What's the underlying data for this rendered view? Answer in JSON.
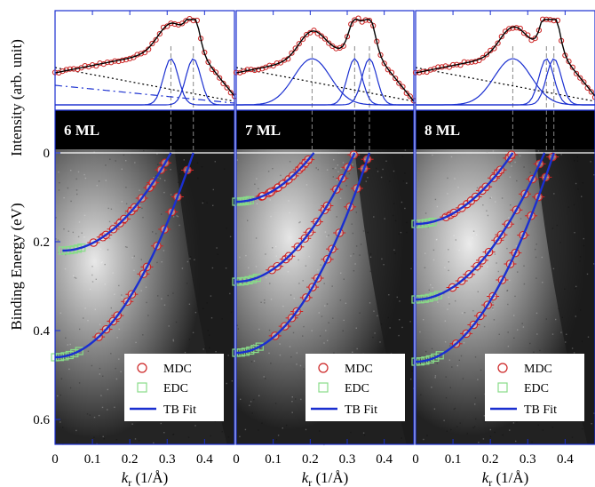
{
  "figure": {
    "y_label_top": "Intensity (arb. unit)",
    "y_label_bottom": "Binding Energy (eV)",
    "x_label_italic": "k",
    "x_label_sub": "r",
    "x_label_rest": " (1/Å)",
    "legend": {
      "mdc": "MDC",
      "edc": "EDC",
      "fit": "TB Fit"
    },
    "colors": {
      "mdc": "#cc2222",
      "edc": "#88dd88",
      "fit": "#1a2fd0",
      "axis": "#1a2fd0",
      "dash": "#888888"
    }
  },
  "chart_data": {
    "type": "scatter",
    "xlim": [
      0,
      0.48
    ],
    "ylim": [
      0.65,
      0
    ],
    "x_ticks": [
      0,
      0.1,
      0.2,
      0.3,
      0.4
    ],
    "y_ticks": [
      0,
      0.2,
      0.4,
      0.6
    ],
    "x_tick_labels": [
      "0",
      "0.1",
      "0.2",
      "0.3",
      "0.4"
    ],
    "y_tick_labels": [
      "0",
      "0.2",
      "0.4",
      "0.6"
    ],
    "panels": [
      {
        "label": "6 ML",
        "mdc_fermi_k": [
          0.31,
          0.37
        ],
        "bands": [
          {
            "kf": 0.31,
            "bottom_e": 0.22,
            "bottom_k": 0.02
          },
          {
            "kf": 0.37,
            "bottom_e": 0.46,
            "bottom_k": 0.0
          }
        ]
      },
      {
        "label": "7 ML",
        "mdc_fermi_k": [
          0.205,
          0.32,
          0.36
        ],
        "bands": [
          {
            "kf": 0.21,
            "bottom_e": 0.11,
            "bottom_k": 0.0
          },
          {
            "kf": 0.32,
            "bottom_e": 0.29,
            "bottom_k": 0.0
          },
          {
            "kf": 0.36,
            "bottom_e": 0.45,
            "bottom_k": 0.0
          }
        ]
      },
      {
        "label": "8 ML",
        "mdc_fermi_k": [
          0.26,
          0.35,
          0.37
        ],
        "bands": [
          {
            "kf": 0.26,
            "bottom_e": 0.16,
            "bottom_k": 0.0
          },
          {
            "kf": 0.345,
            "bottom_e": 0.33,
            "bottom_k": 0.0
          },
          {
            "kf": 0.37,
            "bottom_e": 0.47,
            "bottom_k": 0.0
          }
        ]
      }
    ]
  }
}
